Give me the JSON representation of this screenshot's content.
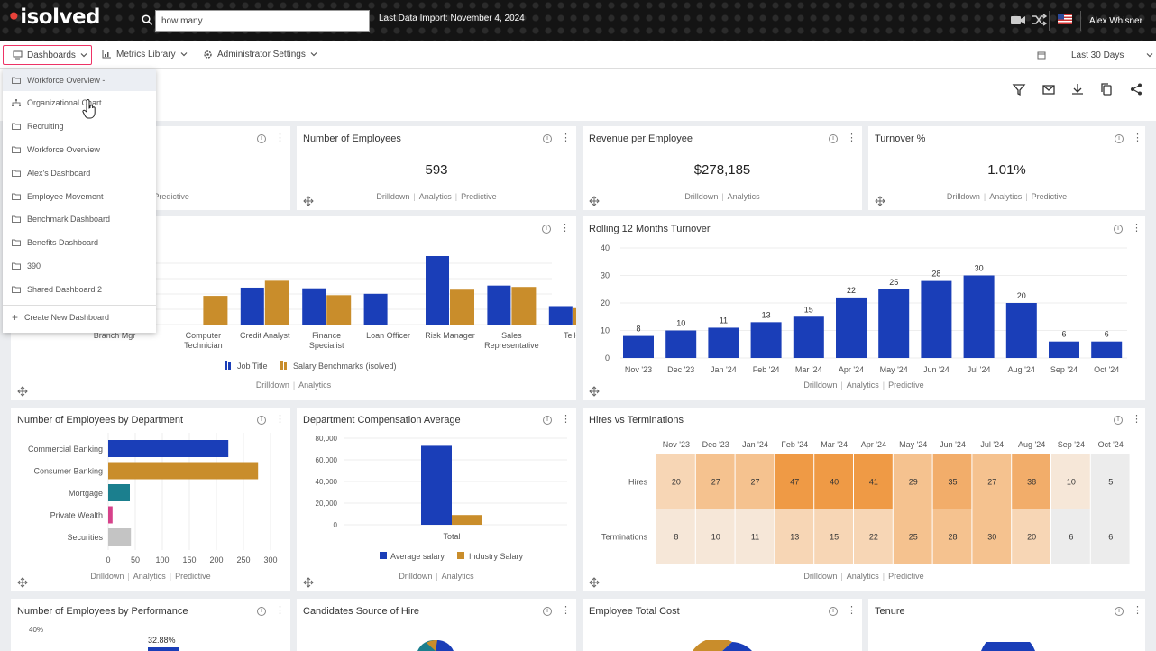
{
  "header": {
    "logo": "isolved",
    "search_value": "how many",
    "import_text": "Last Data Import: November 4, 2024",
    "user": "Alex Whisner"
  },
  "nav": {
    "dashboards": "Dashboards",
    "metrics": "Metrics Library",
    "admin": "Administrator Settings",
    "date_range": "Last 30 Days"
  },
  "menu": {
    "items": [
      "Workforce Overview -",
      "Organizational Chart",
      "Recruiting",
      "Workforce Overview",
      "Alex's Dashboard",
      "Employee Movement",
      "Benchmark Dashboard",
      "Benefits Dashboard",
      "390",
      "Shared Dashboard 2"
    ],
    "create": "Create New Dashboard"
  },
  "links": {
    "drilldown": "Drilldown",
    "analytics": "Analytics",
    "predictive": "Predictive"
  },
  "kpis": [
    {
      "title": "Number of Employees",
      "value": "593"
    },
    {
      "title": "Revenue per Employee",
      "value": "$278,185"
    },
    {
      "title": "Turnover %",
      "value": "1.01%"
    }
  ],
  "colors": {
    "blue": "#1a3eb8",
    "gold": "#c98d2b",
    "teal": "#1b7f8e",
    "pink": "#d6418a",
    "gray": "#c4c4c4"
  },
  "chart_data": [
    {
      "type": "bar",
      "title": "",
      "categories": [
        "Branch Mgr",
        "Computer Technician",
        "Credit Analyst",
        "Finance Specialist",
        "Loan Officer",
        "Risk Manager",
        "Sales Representative",
        "Teller"
      ],
      "series": [
        {
          "name": "Job Title",
          "values": [
            null,
            null,
            54,
            53,
            45,
            100,
            57,
            27
          ]
        },
        {
          "name": "Salary Benchmarks (isolved)",
          "values": [
            null,
            42,
            64,
            43,
            null,
            51,
            55,
            24
          ]
        }
      ],
      "legend": [
        "Job Title",
        "Salary Benchmarks (isolved)"
      ]
    },
    {
      "type": "bar",
      "title": "Rolling 12 Months Turnover",
      "categories": [
        "Nov '23",
        "Dec '23",
        "Jan '24",
        "Feb '24",
        "Mar '24",
        "Apr '24",
        "May '24",
        "Jun '24",
        "Jul '24",
        "Aug '24",
        "Sep '24",
        "Oct '24"
      ],
      "values": [
        8,
        10,
        11,
        13,
        15,
        22,
        25,
        28,
        30,
        20,
        6,
        6
      ],
      "yticks": [
        0,
        10,
        20,
        30,
        40
      ],
      "ylim": [
        0,
        40
      ]
    },
    {
      "type": "bar",
      "title": "Number of Employees by Department",
      "categories": [
        "Commercial Banking",
        "Consumer Banking",
        "Mortgage",
        "Private Wealth",
        "Securities"
      ],
      "values": [
        222,
        277,
        40,
        8,
        42
      ],
      "xticks": [
        0,
        50,
        100,
        150,
        200,
        250,
        300
      ],
      "xlim": [
        0,
        300
      ]
    },
    {
      "type": "bar",
      "title": "Department Compensation Average",
      "categories": [
        "Total"
      ],
      "series": [
        {
          "name": "Average salary",
          "values": [
            73000
          ]
        },
        {
          "name": "Industry Salary",
          "values": [
            9000
          ]
        }
      ],
      "yticks": [
        "0",
        "20,000",
        "40,000",
        "60,000",
        "80,000"
      ],
      "ylim": [
        0,
        80000
      ]
    },
    {
      "type": "heatmap",
      "title": "Hires vs Terminations",
      "columns": [
        "Nov '23",
        "Dec '23",
        "Jan '24",
        "Feb '24",
        "Mar '24",
        "Apr '24",
        "May '24",
        "Jun '24",
        "Jul '24",
        "Aug '24",
        "Sep '24",
        "Oct '24"
      ],
      "rows": [
        "Hires",
        "Terminations"
      ],
      "values": [
        [
          20,
          27,
          27,
          47,
          40,
          41,
          29,
          35,
          27,
          38,
          10,
          5
        ],
        [
          8,
          10,
          11,
          13,
          15,
          22,
          25,
          28,
          30,
          20,
          6,
          6
        ]
      ]
    }
  ],
  "bottom": {
    "perf_title": "Number of Employees by Performance",
    "perf_tick": "40%",
    "perf_label": "32.88%",
    "cand_title": "Candidates Source of Hire",
    "cost_title": "Employee Total Cost",
    "tenure_title": "Tenure"
  }
}
